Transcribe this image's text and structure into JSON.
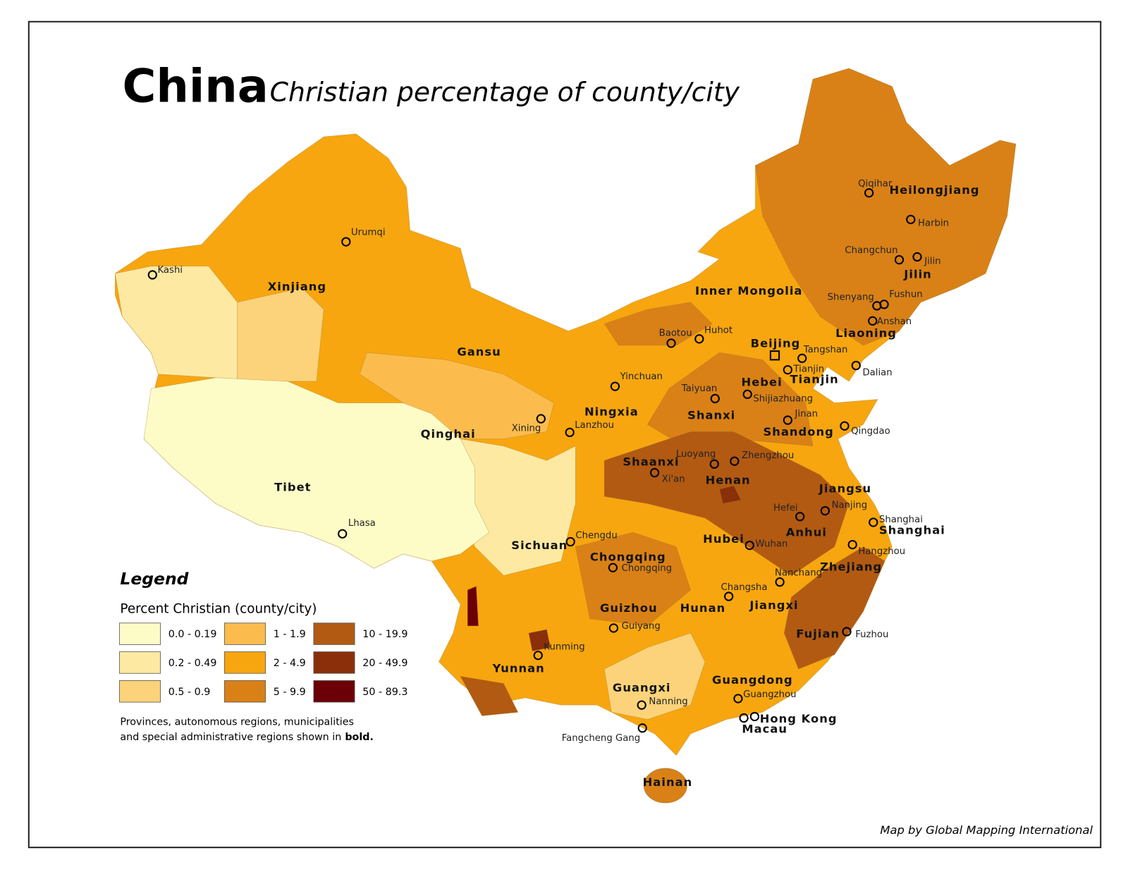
{
  "header": {
    "title": "China",
    "subtitle": "Christian percentage of county/city"
  },
  "legend": {
    "title": "Legend",
    "subtitle": "Percent Christian (county/city)",
    "classes": [
      {
        "label": "0.0 - 0.19",
        "color": "#fefcc6"
      },
      {
        "label": "0.2 - 0.49",
        "color": "#fde9a2"
      },
      {
        "label": "0.5 - 0.9",
        "color": "#fcd37a"
      },
      {
        "label": "1 - 1.9",
        "color": "#fbbc4d"
      },
      {
        "label": "2 - 4.9",
        "color": "#f7a60f"
      },
      {
        "label": "5 - 9.9",
        "color": "#d98117"
      },
      {
        "label": "10 - 19.9",
        "color": "#b25a12"
      },
      {
        "label": "20 - 49.9",
        "color": "#8a2f0a"
      },
      {
        "label": "50 - 89.3",
        "color": "#6b0006"
      }
    ]
  },
  "provinces": [
    "Xinjiang",
    "Gansu",
    "Qinghai",
    "Tibet",
    "Inner Mongolia",
    "Heilongjiang",
    "Jilin",
    "Liaoning",
    "Beijing",
    "Tianjin",
    "Hebei",
    "Shanxi",
    "Shandong",
    "Ningxia",
    "Shaanxi",
    "Henan",
    "Jiangsu",
    "Anhui",
    "Shanghai",
    "Hubei",
    "Zhejiang",
    "Sichuan",
    "Chongqing",
    "Guizhou",
    "Hunan",
    "Jiangxi",
    "Fujian",
    "Yunnan",
    "Guangxi",
    "Guangdong",
    "Hong Kong",
    "Macau",
    "Hainan"
  ],
  "cities": [
    "Urumqi",
    "Kashi",
    "Lhasa",
    "Qiqihar",
    "Harbin",
    "Changchun",
    "Jilin",
    "Shenyang",
    "Fushun",
    "Anshan",
    "Baotou",
    "Huhot",
    "Tangshan",
    "Tianjin",
    "Dalian",
    "Yinchuan",
    "Taiyuan",
    "Shijiazhuang",
    "Jinan",
    "Qingdao",
    "Xining",
    "Lanzhou",
    "Luoyang",
    "Zhengzhou",
    "Xi'an",
    "Nanjing",
    "Hefei",
    "Shanghai",
    "Chengdu",
    "Wuhan",
    "Hangzhou",
    "Chongqing",
    "Nanchang",
    "Changsha",
    "Guiyang",
    "Fuzhou",
    "Kunming",
    "Nanning",
    "Guangzhou",
    "Fangcheng Gang"
  ],
  "footnote": {
    "lines": [
      "Provinces, autonomous regions, municipalities",
      "and special administrative regions shown in"
    ],
    "emphasis": "bold."
  },
  "credit": "Map by Global Mapping International"
}
